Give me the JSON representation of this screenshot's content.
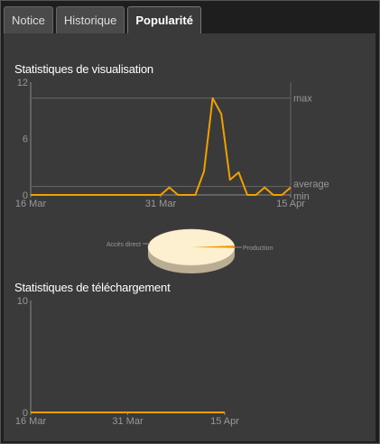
{
  "tabs": [
    {
      "label": "Notice",
      "active": false
    },
    {
      "label": "Historique",
      "active": false
    },
    {
      "label": "Popularité",
      "active": true
    }
  ],
  "sections": {
    "views_title": "Statistiques de visualisation",
    "downloads_title": "Statistiques de téléchargement"
  },
  "colors": {
    "line": "#f0a000",
    "pie_main": "#fdf0d0",
    "pie_slice": "#f09a00"
  },
  "chart_data": [
    {
      "type": "line",
      "title": "Statistiques de visualisation",
      "x_tick_labels": [
        "16 Mar",
        "31 Mar",
        "15 Apr"
      ],
      "y_tick_labels": [
        "0",
        "6",
        "12"
      ],
      "ylim": [
        0,
        12
      ],
      "reference_lines": [
        {
          "label": "max",
          "value": 10.3
        },
        {
          "label": "average",
          "value": 0.9
        },
        {
          "label": "min",
          "value": 0
        }
      ],
      "x": [
        "16 Mar",
        "17 Mar",
        "18 Mar",
        "19 Mar",
        "20 Mar",
        "21 Mar",
        "22 Mar",
        "23 Mar",
        "24 Mar",
        "25 Mar",
        "26 Mar",
        "27 Mar",
        "28 Mar",
        "29 Mar",
        "30 Mar",
        "31 Mar",
        "1 Apr",
        "2 Apr",
        "3 Apr",
        "4 Apr",
        "5 Apr",
        "6 Apr",
        "7 Apr",
        "8 Apr",
        "9 Apr",
        "10 Apr",
        "11 Apr",
        "12 Apr",
        "13 Apr",
        "14 Apr",
        "15 Apr"
      ],
      "values": [
        0,
        0,
        0,
        0,
        0,
        0,
        0,
        0,
        0,
        0,
        0,
        0,
        0,
        0,
        0,
        0,
        0.8,
        0,
        0,
        0,
        2.5,
        10.3,
        8.6,
        1.6,
        2.4,
        0,
        0,
        0.8,
        0,
        0,
        0.8
      ],
      "grid": false
    },
    {
      "type": "pie",
      "labels": [
        "Accès direct",
        "Production"
      ],
      "values": [
        97,
        3
      ]
    },
    {
      "type": "line",
      "title": "Statistiques de téléchargement",
      "x_tick_labels": [
        "16 Mar",
        "31 Mar",
        "15 Apr"
      ],
      "y_tick_labels": [
        "0",
        "10"
      ],
      "ylim": [
        0,
        10
      ],
      "values": [
        0,
        0,
        0,
        0,
        0,
        0,
        0,
        0,
        0,
        0,
        0,
        0,
        0,
        0,
        0,
        0,
        0,
        0,
        0,
        0,
        0,
        0,
        0,
        0,
        0,
        0,
        0,
        0,
        0,
        0,
        0
      ],
      "grid": false
    }
  ]
}
